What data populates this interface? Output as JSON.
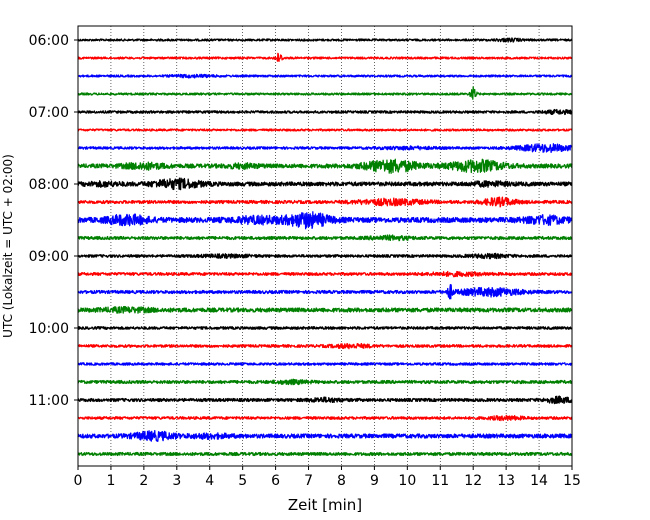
{
  "chart_data": {
    "type": "line",
    "title": "",
    "xlabel": "Zeit  [min]",
    "ylabel": "UTC (Lokalzeit = UTC + 02:00)",
    "xlim": [
      0,
      15
    ],
    "x_ticks": [
      "0",
      "1",
      "2",
      "3",
      "4",
      "5",
      "6",
      "7",
      "8",
      "9",
      "10",
      "11",
      "12",
      "13",
      "14",
      "15"
    ],
    "y_tick_labels": [
      "06:00",
      "07:00",
      "08:00",
      "09:00",
      "10:00",
      "11:00"
    ],
    "grid": "vertical-dotted",
    "trace_colors": [
      "#000000",
      "#ff0000",
      "#0000ff",
      "#008000"
    ],
    "traces": [
      {
        "start": "06:00",
        "color": "#000000",
        "base_amp": 1.0,
        "events": [
          [
            13.1,
            1.2,
            0.4
          ]
        ]
      },
      {
        "start": "06:15",
        "color": "#ff0000",
        "base_amp": 1.0,
        "events": [
          [
            6.1,
            4.5,
            0.1
          ]
        ]
      },
      {
        "start": "06:30",
        "color": "#0000ff",
        "base_amp": 1.0,
        "events": [
          [
            3.5,
            1.0,
            0.6
          ]
        ]
      },
      {
        "start": "06:45",
        "color": "#008000",
        "base_amp": 1.0,
        "events": [
          [
            12.0,
            6.5,
            0.08
          ]
        ]
      },
      {
        "start": "07:00",
        "color": "#000000",
        "base_amp": 1.2,
        "events": [
          [
            14.6,
            1.5,
            0.5
          ]
        ]
      },
      {
        "start": "07:15",
        "color": "#ff0000",
        "base_amp": 1.0,
        "events": []
      },
      {
        "start": "07:30",
        "color": "#0000ff",
        "base_amp": 1.2,
        "events": [
          [
            14.2,
            3.5,
            0.8
          ],
          [
            10.0,
            1.0,
            0.8
          ]
        ]
      },
      {
        "start": "07:45",
        "color": "#008000",
        "base_amp": 2.0,
        "events": [
          [
            2.0,
            2.5,
            0.6
          ],
          [
            9.5,
            5.5,
            0.8
          ],
          [
            12.1,
            5.0,
            0.8
          ],
          [
            5.0,
            1.5,
            0.5
          ]
        ]
      },
      {
        "start": "08:00",
        "color": "#000000",
        "base_amp": 2.0,
        "events": [
          [
            3.0,
            4.0,
            0.7
          ],
          [
            0.8,
            1.5,
            0.5
          ],
          [
            12.5,
            1.5,
            0.6
          ]
        ]
      },
      {
        "start": "08:15",
        "color": "#ff0000",
        "base_amp": 1.5,
        "events": [
          [
            12.8,
            3.5,
            0.5
          ],
          [
            9.5,
            2.5,
            1.0
          ]
        ]
      },
      {
        "start": "08:30",
        "color": "#0000ff",
        "base_amp": 2.5,
        "events": [
          [
            1.5,
            4.0,
            0.6
          ],
          [
            7.0,
            6.5,
            0.6
          ],
          [
            14.2,
            3.0,
            0.6
          ],
          [
            5.5,
            2.5,
            0.8
          ]
        ]
      },
      {
        "start": "08:45",
        "color": "#008000",
        "base_amp": 1.5,
        "events": [
          [
            9.5,
            1.5,
            0.6
          ]
        ]
      },
      {
        "start": "09:00",
        "color": "#000000",
        "base_amp": 1.3,
        "events": [
          [
            12.5,
            1.5,
            0.6
          ],
          [
            4.5,
            1.0,
            0.8
          ]
        ]
      },
      {
        "start": "09:15",
        "color": "#ff0000",
        "base_amp": 1.4,
        "events": [
          [
            11.5,
            1.3,
            0.8
          ]
        ]
      },
      {
        "start": "09:30",
        "color": "#0000ff",
        "base_amp": 1.5,
        "events": [
          [
            11.3,
            6.0,
            0.08
          ],
          [
            12.5,
            3.5,
            0.9
          ]
        ]
      },
      {
        "start": "09:45",
        "color": "#008000",
        "base_amp": 2.0,
        "events": [
          [
            1.5,
            1.5,
            0.8
          ]
        ]
      },
      {
        "start": "10:00",
        "color": "#000000",
        "base_amp": 1.3,
        "events": []
      },
      {
        "start": "10:15",
        "color": "#ff0000",
        "base_amp": 1.3,
        "events": [
          [
            8.3,
            1.5,
            0.6
          ]
        ]
      },
      {
        "start": "10:30",
        "color": "#0000ff",
        "base_amp": 1.2,
        "events": []
      },
      {
        "start": "10:45",
        "color": "#008000",
        "base_amp": 1.5,
        "events": [
          [
            6.5,
            1.3,
            0.5
          ]
        ]
      },
      {
        "start": "11:00",
        "color": "#000000",
        "base_amp": 1.5,
        "events": [
          [
            14.6,
            2.5,
            0.4
          ],
          [
            7.5,
            1.5,
            0.5
          ]
        ]
      },
      {
        "start": "11:15",
        "color": "#ff0000",
        "base_amp": 1.3,
        "events": [
          [
            13.0,
            1.5,
            0.5
          ]
        ]
      },
      {
        "start": "11:30",
        "color": "#0000ff",
        "base_amp": 2.0,
        "events": [
          [
            2.3,
            3.5,
            0.6
          ],
          [
            4.0,
            1.5,
            0.6
          ]
        ]
      },
      {
        "start": "11:45",
        "color": "#008000",
        "base_amp": 1.5,
        "events": []
      }
    ]
  }
}
